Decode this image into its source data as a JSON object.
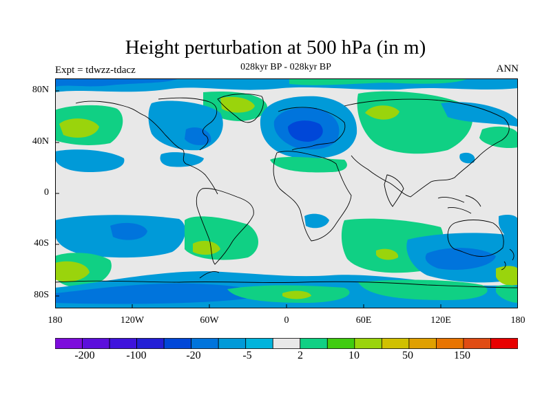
{
  "title": "Height perturbation at 500 hPa (in m)",
  "subtitle": "028kyr BP - 028kyr BP",
  "left_label": "Expt = tdwzz-tdacz",
  "right_label": "ANN",
  "lat_labels": [
    "80N",
    "40N",
    "0",
    "40S",
    "80S"
  ],
  "lon_labels": [
    "180",
    "120W",
    "60W",
    "0",
    "60E",
    "120E",
    "180"
  ],
  "colorbar": {
    "colors": [
      "#7d0ddc",
      "#5c0fdc",
      "#3f13dc",
      "#241fd6",
      "#0047d8",
      "#0074dc",
      "#009ad8",
      "#00b4dc",
      "#e8e8e8",
      "#10d084",
      "#40cc10",
      "#9ad40c",
      "#d0c000",
      "#e0a000",
      "#e87400",
      "#e04c14",
      "#e80000"
    ],
    "labels": [
      "-200",
      "-100",
      "-20",
      "-5",
      "2",
      "10",
      "50",
      "150"
    ]
  }
}
